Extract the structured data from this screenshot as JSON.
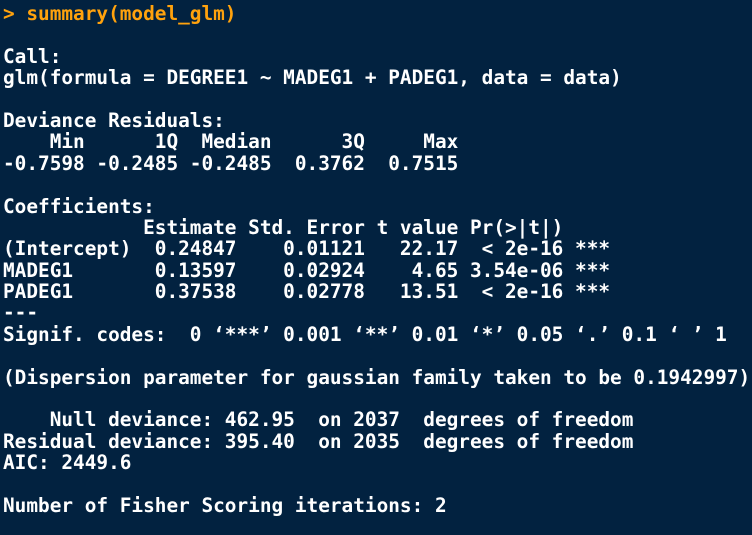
{
  "colors": {
    "background": "#022240",
    "output_text": "#ffffff",
    "command_text": "#ffa20d"
  },
  "console": {
    "command_line": "> summary(model_glm)",
    "call": {
      "header": "Call:",
      "formula": "glm(formula = DEGREE1 ~ MADEG1 + PADEG1, data = data)"
    },
    "deviance_residuals": {
      "header": "Deviance Residuals:",
      "columns_row": "    Min      1Q  Median      3Q     Max",
      "values_row": "-0.7598 -0.2485 -0.2485  0.3762  0.7515",
      "values": {
        "min": -0.7598,
        "q1": -0.2485,
        "median": -0.2485,
        "q3": 0.3762,
        "max": 0.7515
      }
    },
    "coefficients": {
      "header": "Coefficients:",
      "columns_row": "            Estimate Std. Error t value Pr(>|t|)",
      "rows": [
        {
          "text": "(Intercept)  0.24847    0.01121   22.17  < 2e-16 ***",
          "term": "(Intercept)",
          "estimate": 0.24847,
          "std_error": 0.01121,
          "t_value": 22.17,
          "p_value": "< 2e-16",
          "signif": "***"
        },
        {
          "text": "MADEG1       0.13597    0.02924    4.65 3.54e-06 ***",
          "term": "MADEG1",
          "estimate": 0.13597,
          "std_error": 0.02924,
          "t_value": 4.65,
          "p_value": "3.54e-06",
          "signif": "***"
        },
        {
          "text": "PADEG1       0.37538    0.02778   13.51  < 2e-16 ***",
          "term": "PADEG1",
          "estimate": 0.37538,
          "std_error": 0.02778,
          "t_value": 13.51,
          "p_value": "< 2e-16",
          "signif": "***"
        }
      ],
      "separator": "---",
      "signif_codes": "Signif. codes:  0 ‘***’ 0.001 ‘**’ 0.01 ‘*’ 0.05 ‘.’ 0.1 ‘ ’ 1"
    },
    "dispersion_line": "(Dispersion parameter for gaussian family taken to be 0.1942997)",
    "deviance": {
      "null_line": "    Null deviance: 462.95  on 2037  degrees of freedom",
      "residual_line": "Residual deviance: 395.40  on 2035  degrees of freedom",
      "aic_line": "AIC: 2449.6",
      "null_deviance": 462.95,
      "null_df": 2037,
      "residual_deviance": 395.4,
      "residual_df": 2035,
      "aic": 2449.6
    },
    "fisher_line": "Number of Fisher Scoring iterations: 2",
    "fisher_iterations": 2
  }
}
